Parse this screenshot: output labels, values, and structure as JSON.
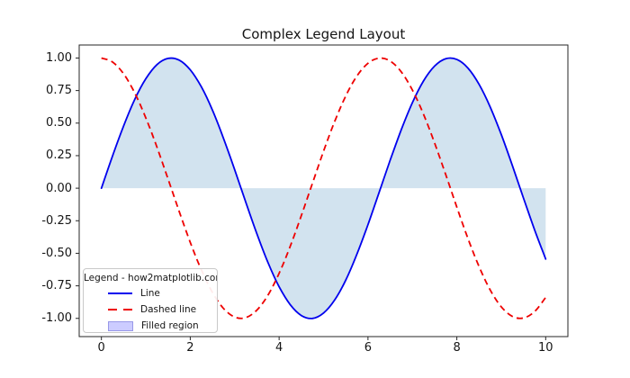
{
  "chart_data": {
    "type": "line",
    "title": "Complex Legend Layout",
    "xlabel": "",
    "ylabel": "",
    "grid": false,
    "xlim": [
      -0.5,
      10.5
    ],
    "ylim": [
      -1.14,
      1.1
    ],
    "x_ticks": {
      "values": [
        0,
        2,
        4,
        6,
        8,
        10
      ],
      "labels": [
        "0",
        "2",
        "4",
        "6",
        "8",
        "10"
      ]
    },
    "y_ticks": {
      "values": [
        1.0,
        0.75,
        0.5,
        0.25,
        0.0,
        -0.25,
        -0.5,
        -0.75,
        -1.0
      ],
      "labels": [
        "1.00",
        "0.75",
        "0.50",
        "0.25",
        "0.00",
        "-0.25",
        "-0.50",
        "-0.75",
        "-1.00"
      ]
    },
    "x_samples": [
      0,
      0.25,
      0.5,
      0.75,
      1,
      1.25,
      1.5,
      1.75,
      2,
      2.25,
      2.5,
      2.75,
      3,
      3.25,
      3.5,
      3.75,
      4,
      4.25,
      4.5,
      4.75,
      5,
      5.25,
      5.5,
      5.75,
      6,
      6.25,
      6.5,
      6.75,
      7,
      7.25,
      7.5,
      7.75,
      8,
      8.25,
      8.5,
      8.75,
      9,
      9.25,
      9.5,
      9.75,
      10
    ],
    "series": [
      {
        "name": "Line",
        "fn": "sin(x)",
        "style": "solid",
        "color": "#0000ee",
        "y": [
          0,
          0.247,
          0.479,
          0.682,
          0.841,
          0.949,
          0.997,
          0.984,
          0.909,
          0.778,
          0.599,
          0.382,
          0.141,
          -0.108,
          -0.351,
          -0.572,
          -0.757,
          -0.895,
          -0.978,
          -1.0,
          -0.959,
          -0.859,
          -0.706,
          -0.508,
          -0.279,
          -0.033,
          0.215,
          0.45,
          0.657,
          0.824,
          0.938,
          0.995,
          0.989,
          0.923,
          0.798,
          0.625,
          0.412,
          0.174,
          -0.075,
          -0.32,
          -0.544
        ]
      },
      {
        "name": "Dashed line",
        "fn": "cos(x)",
        "style": "dashed",
        "color": "#ee0000",
        "y": [
          1,
          0.969,
          0.878,
          0.732,
          0.54,
          0.315,
          0.071,
          -0.178,
          -0.416,
          -0.628,
          -0.801,
          -0.924,
          -0.99,
          -0.994,
          -0.936,
          -0.821,
          -0.654,
          -0.446,
          -0.211,
          0.038,
          0.284,
          0.512,
          0.709,
          0.861,
          0.96,
          0.999,
          0.977,
          0.893,
          0.754,
          0.568,
          0.347,
          0.104,
          -0.146,
          -0.386,
          -0.602,
          -0.781,
          -0.911,
          -0.985,
          -0.997,
          -0.948,
          -0.839
        ]
      },
      {
        "name": "Filled region",
        "kind": "fill_between",
        "baseline": 0,
        "follows": "Line",
        "fill_color": "#d2e3ef"
      }
    ],
    "legend": {
      "title": "Legend - how2matplotlib.com",
      "position": "lower left",
      "items": [
        {
          "label": "Line",
          "swatch": "blue-solid-line",
          "color": "#0000ee"
        },
        {
          "label": "Dashed line",
          "swatch": "red-dashed-line",
          "color": "#ee0000"
        },
        {
          "label": "Filled region",
          "swatch": "lavender-patch",
          "fill": "#ccccff",
          "edge": "#9898e8"
        }
      ]
    },
    "axis_color": "#262626"
  }
}
